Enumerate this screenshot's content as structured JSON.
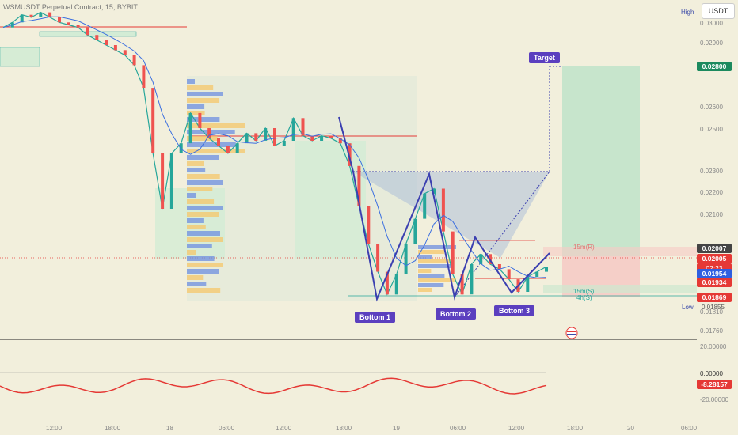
{
  "title": "WSMUSDT Perpetual Contract, 15, BYBIT",
  "currency": "USDT",
  "high_label": "High",
  "low_label": "Low",
  "low_value": "0.01855",
  "price_axis_ticks": [
    "0.03000",
    "0.02900",
    "0.02600",
    "0.02500",
    "0.02300",
    "0.02200",
    "0.02100",
    "0.01810",
    "0.01760"
  ],
  "price_labels": {
    "target_price": "0.02800",
    "last_price": "0.02007",
    "current_price": "0.02005",
    "countdown": "02:23",
    "ma_price": "0.01954",
    "level_price": "0.01934",
    "support_price": "0.01869"
  },
  "time_axis_ticks": [
    "12:00",
    "18:00",
    "18",
    "06:00",
    "12:00",
    "18:00",
    "19",
    "06:00",
    "12:00",
    "18:00",
    "20",
    "06:00"
  ],
  "annotations": {
    "target": "Target",
    "bottoms": [
      "Bottom 1",
      "Bottom 2",
      "Bottom 3"
    ],
    "zone_15m_r": "15m(R)",
    "zone_15m_s": "15m(S)",
    "zone_4h_s": "4h(S)"
  },
  "oscillator": {
    "axis_ticks": [
      "20.00000",
      "0.00000",
      "-20.00000"
    ],
    "current_value": "-8.28157"
  },
  "colors": {
    "background": "#f2efdc",
    "up": "#26a69a",
    "down": "#ef5350",
    "pattern": "#3b3fb0",
    "label": "#5b3fbf",
    "target_badge": "#1c8a5e",
    "oscillator_line": "#e53935"
  },
  "chart_data": {
    "type": "line",
    "title": "WSMUSDT Perpetual Contract, 15, BYBIT",
    "xlabel": "",
    "ylabel": "",
    "ylim": [
      0.0175,
      0.0305
    ],
    "x_ticks": [
      "12:00",
      "18:00",
      "18",
      "06:00",
      "12:00",
      "18:00",
      "19",
      "06:00",
      "12:00",
      "18:00",
      "20",
      "06:00"
    ],
    "series": [
      {
        "values": [
          0.0296,
          0.0298,
          0.0301,
          0.03,
          0.0302,
          0.03,
          0.0298,
          0.0297,
          0.0296,
          0.0293,
          0.0291,
          0.0289,
          0.0287,
          0.0285,
          0.0281,
          0.0272,
          0.0246,
          0.0224,
          0.0246,
          0.025,
          0.0262,
          0.0256,
          0.0252,
          0.0249,
          0.0246,
          0.025,
          0.0254,
          0.0251,
          0.0256,
          0.0249,
          0.0251,
          0.026,
          0.0253,
          0.0251,
          0.0253,
          0.0252,
          0.025,
          0.0241,
          0.0225,
          0.021,
          0.0199,
          0.019,
          0.0198,
          0.021,
          0.022,
          0.023,
          0.0232,
          0.0215,
          0.0198,
          0.019,
          0.0202,
          0.0206,
          0.0202,
          0.02,
          0.0196,
          0.0191,
          0.0197,
          0.0199,
          0.0201
        ]
      }
    ],
    "pattern": {
      "name": "Triple bottom",
      "bottoms": [
        0.0187,
        0.0188,
        0.0189
      ],
      "neckline": 0.0232,
      "target": 0.028
    },
    "levels": [
      {
        "label": "15m(R)",
        "value": 0.02
      },
      {
        "label": "15m(S)",
        "value": 0.0187
      },
      {
        "label": "4h(S)",
        "value": 0.0186
      }
    ]
  }
}
